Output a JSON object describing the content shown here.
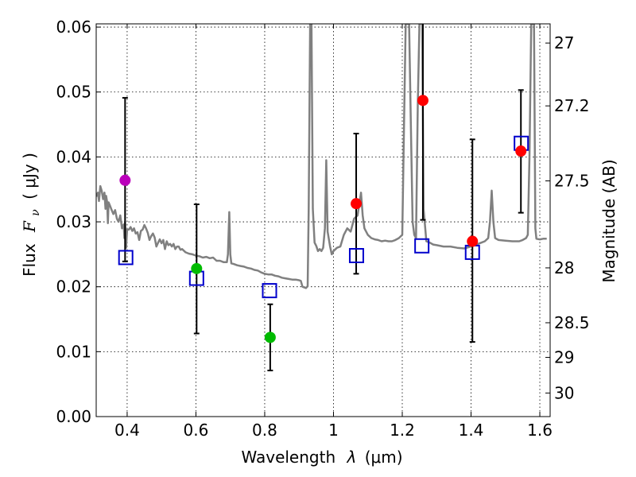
{
  "chart_data": {
    "type": "scatter",
    "xlabel_prefix": "Wavelength",
    "xlabel_symbol": "λ",
    "xlabel_unit": "(μm)",
    "ylabel_prefix": "Flux",
    "ylabel_symbol": "F",
    "ylabel_sub": "ν",
    "ylabel_unit": "( μJy )",
    "y2label": "Magnitude (AB)",
    "xlim": [
      0.31,
      1.63
    ],
    "ylim": [
      0.0,
      0.0605
    ],
    "grid": true,
    "x_ticks": [
      {
        "value": 0.4,
        "label": "0.4"
      },
      {
        "value": 0.6,
        "label": "0.6"
      },
      {
        "value": 0.8,
        "label": "0.8"
      },
      {
        "value": 1.0,
        "label": "1"
      },
      {
        "value": 1.2,
        "label": "1.2"
      },
      {
        "value": 1.4,
        "label": "1.4"
      },
      {
        "value": 1.6,
        "label": "1.6"
      }
    ],
    "y_ticks": [
      {
        "value": 0.0,
        "label": "0.00"
      },
      {
        "value": 0.01,
        "label": "0.01"
      },
      {
        "value": 0.02,
        "label": "0.02"
      },
      {
        "value": 0.03,
        "label": "0.03"
      },
      {
        "value": 0.04,
        "label": "0.04"
      },
      {
        "value": 0.05,
        "label": "0.05"
      },
      {
        "value": 0.06,
        "label": "0.06"
      }
    ],
    "mag_ticks": [
      {
        "mag": 27,
        "label": "27"
      },
      {
        "mag": 27.2,
        "label": "27.2"
      },
      {
        "mag": 27.5,
        "label": "27.5"
      },
      {
        "mag": 28,
        "label": "28"
      },
      {
        "mag": 28.5,
        "label": "28.5"
      },
      {
        "mag": 29,
        "label": "29"
      },
      {
        "mag": 30,
        "label": "30"
      }
    ],
    "series": [
      {
        "name": "model-spectrum",
        "kind": "line",
        "color": "#808080",
        "points": [
          [
            0.31,
            0.0339
          ],
          [
            0.315,
            0.0345
          ],
          [
            0.318,
            0.0332
          ],
          [
            0.322,
            0.0355
          ],
          [
            0.326,
            0.0348
          ],
          [
            0.33,
            0.0335
          ],
          [
            0.334,
            0.0345
          ],
          [
            0.337,
            0.032
          ],
          [
            0.339,
            0.034
          ],
          [
            0.342,
            0.033
          ],
          [
            0.344,
            0.0298
          ],
          [
            0.346,
            0.033
          ],
          [
            0.35,
            0.0325
          ],
          [
            0.355,
            0.0318
          ],
          [
            0.36,
            0.0312
          ],
          [
            0.365,
            0.0318
          ],
          [
            0.37,
            0.0305
          ],
          [
            0.375,
            0.03
          ],
          [
            0.38,
            0.031
          ],
          [
            0.385,
            0.029
          ],
          [
            0.39,
            0.0296
          ],
          [
            0.392,
            0.0275
          ],
          [
            0.394,
            0.03
          ],
          [
            0.397,
            0.026
          ],
          [
            0.4,
            0.0288
          ],
          [
            0.405,
            0.0288
          ],
          [
            0.41,
            0.0292
          ],
          [
            0.415,
            0.0286
          ],
          [
            0.42,
            0.029
          ],
          [
            0.425,
            0.0282
          ],
          [
            0.43,
            0.0284
          ],
          [
            0.435,
            0.0272
          ],
          [
            0.44,
            0.0286
          ],
          [
            0.445,
            0.0288
          ],
          [
            0.45,
            0.0295
          ],
          [
            0.455,
            0.029
          ],
          [
            0.46,
            0.0283
          ],
          [
            0.465,
            0.0272
          ],
          [
            0.47,
            0.0278
          ],
          [
            0.475,
            0.0282
          ],
          [
            0.48,
            0.0276
          ],
          [
            0.485,
            0.0262
          ],
          [
            0.49,
            0.0268
          ],
          [
            0.495,
            0.0273
          ],
          [
            0.5,
            0.0267
          ],
          [
            0.505,
            0.0272
          ],
          [
            0.51,
            0.0258
          ],
          [
            0.515,
            0.027
          ],
          [
            0.52,
            0.0264
          ],
          [
            0.525,
            0.0266
          ],
          [
            0.53,
            0.0262
          ],
          [
            0.535,
            0.0266
          ],
          [
            0.54,
            0.0258
          ],
          [
            0.545,
            0.0262
          ],
          [
            0.55,
            0.0262
          ],
          [
            0.555,
            0.0257
          ],
          [
            0.56,
            0.0258
          ],
          [
            0.57,
            0.0253
          ],
          [
            0.58,
            0.0251
          ],
          [
            0.59,
            0.025
          ],
          [
            0.6,
            0.0248
          ],
          [
            0.61,
            0.0247
          ],
          [
            0.62,
            0.0245
          ],
          [
            0.63,
            0.0246
          ],
          [
            0.64,
            0.0244
          ],
          [
            0.65,
            0.0245
          ],
          [
            0.66,
            0.024
          ],
          [
            0.67,
            0.024
          ],
          [
            0.68,
            0.0238
          ],
          [
            0.69,
            0.0238
          ],
          [
            0.693,
            0.025
          ],
          [
            0.697,
            0.0315
          ],
          [
            0.7,
            0.025
          ],
          [
            0.703,
            0.0236
          ],
          [
            0.71,
            0.0235
          ],
          [
            0.72,
            0.0233
          ],
          [
            0.73,
            0.0232
          ],
          [
            0.74,
            0.0231
          ],
          [
            0.75,
            0.0229
          ],
          [
            0.76,
            0.0228
          ],
          [
            0.77,
            0.0226
          ],
          [
            0.78,
            0.0225
          ],
          [
            0.79,
            0.0222
          ],
          [
            0.8,
            0.022
          ],
          [
            0.81,
            0.0219
          ],
          [
            0.82,
            0.0219
          ],
          [
            0.83,
            0.0217
          ],
          [
            0.84,
            0.0216
          ],
          [
            0.85,
            0.0214
          ],
          [
            0.86,
            0.0213
          ],
          [
            0.87,
            0.0212
          ],
          [
            0.88,
            0.0211
          ],
          [
            0.89,
            0.0211
          ],
          [
            0.9,
            0.021
          ],
          [
            0.905,
            0.0209
          ],
          [
            0.91,
            0.02
          ],
          [
            0.92,
            0.0198
          ],
          [
            0.925,
            0.0201
          ],
          [
            0.928,
            0.032
          ],
          [
            0.932,
            0.0605
          ],
          [
            0.936,
            0.0605
          ],
          [
            0.94,
            0.032
          ],
          [
            0.945,
            0.0268
          ],
          [
            0.95,
            0.0263
          ],
          [
            0.955,
            0.0255
          ],
          [
            0.96,
            0.0258
          ],
          [
            0.965,
            0.0255
          ],
          [
            0.97,
            0.026
          ],
          [
            0.975,
            0.029
          ],
          [
            0.979,
            0.0395
          ],
          [
            0.983,
            0.0285
          ],
          [
            0.99,
            0.0262
          ],
          [
            0.995,
            0.025
          ],
          [
            1.0,
            0.0255
          ],
          [
            1.01,
            0.026
          ],
          [
            1.02,
            0.0262
          ],
          [
            1.03,
            0.028
          ],
          [
            1.04,
            0.029
          ],
          [
            1.05,
            0.0285
          ],
          [
            1.06,
            0.0305
          ],
          [
            1.07,
            0.031
          ],
          [
            1.08,
            0.0345
          ],
          [
            1.085,
            0.031
          ],
          [
            1.09,
            0.029
          ],
          [
            1.1,
            0.028
          ],
          [
            1.11,
            0.0275
          ],
          [
            1.12,
            0.0273
          ],
          [
            1.13,
            0.0272
          ],
          [
            1.14,
            0.027
          ],
          [
            1.15,
            0.0271
          ],
          [
            1.16,
            0.027
          ],
          [
            1.17,
            0.027
          ],
          [
            1.18,
            0.0272
          ],
          [
            1.19,
            0.0275
          ],
          [
            1.2,
            0.028
          ],
          [
            1.205,
            0.045
          ],
          [
            1.21,
            0.0605
          ],
          [
            1.22,
            0.0605
          ],
          [
            1.225,
            0.045
          ],
          [
            1.23,
            0.03
          ],
          [
            1.235,
            0.028
          ],
          [
            1.24,
            0.0275
          ],
          [
            1.245,
            0.048
          ],
          [
            1.25,
            0.0605
          ],
          [
            1.258,
            0.0605
          ],
          [
            1.262,
            0.032
          ],
          [
            1.27,
            0.027
          ],
          [
            1.28,
            0.0268
          ],
          [
            1.29,
            0.0265
          ],
          [
            1.3,
            0.0264
          ],
          [
            1.32,
            0.0262
          ],
          [
            1.34,
            0.0262
          ],
          [
            1.36,
            0.026
          ],
          [
            1.38,
            0.0259
          ],
          [
            1.4,
            0.0262
          ],
          [
            1.41,
            0.0264
          ],
          [
            1.42,
            0.0266
          ],
          [
            1.43,
            0.0268
          ],
          [
            1.44,
            0.027
          ],
          [
            1.45,
            0.0275
          ],
          [
            1.455,
            0.03
          ],
          [
            1.46,
            0.0348
          ],
          [
            1.465,
            0.03
          ],
          [
            1.47,
            0.0275
          ],
          [
            1.48,
            0.0272
          ],
          [
            1.5,
            0.0271
          ],
          [
            1.52,
            0.027
          ],
          [
            1.54,
            0.027
          ],
          [
            1.55,
            0.0272
          ],
          [
            1.56,
            0.0275
          ],
          [
            1.565,
            0.028
          ],
          [
            1.57,
            0.04
          ],
          [
            1.575,
            0.0605
          ],
          [
            1.583,
            0.0605
          ],
          [
            1.587,
            0.029
          ],
          [
            1.59,
            0.0274
          ],
          [
            1.6,
            0.0273
          ],
          [
            1.61,
            0.0274
          ],
          [
            1.62,
            0.0274
          ]
        ]
      },
      {
        "name": "model-band-flux",
        "kind": "open-square",
        "color": "#0000cc",
        "x": [
          0.396,
          0.602,
          0.814,
          1.067,
          1.257,
          1.404,
          1.546
        ],
        "y": [
          0.0245,
          0.0213,
          0.0194,
          0.0248,
          0.0263,
          0.0253,
          0.0421
        ]
      },
      {
        "name": "observed-flux",
        "kind": "filled-circle-errorbar",
        "x": [
          0.394,
          0.602,
          0.816,
          1.066,
          1.26,
          1.404,
          1.545
        ],
        "y": [
          0.0364,
          0.0228,
          0.0122,
          0.0328,
          0.0487,
          0.027,
          0.0409
        ],
        "ylow": [
          0.0239,
          0.0128,
          0.0071,
          0.022,
          0.0303,
          0.0115,
          0.0314
        ],
        "yhigh": [
          0.0491,
          0.0327,
          0.0173,
          0.0436,
          0.0605,
          0.0427,
          0.0503
        ],
        "colors": [
          "#bb00bb",
          "#00bb00",
          "#00bb00",
          "#ff0000",
          "#ff0000",
          "#ff0000",
          "#ff0000"
        ]
      }
    ]
  }
}
